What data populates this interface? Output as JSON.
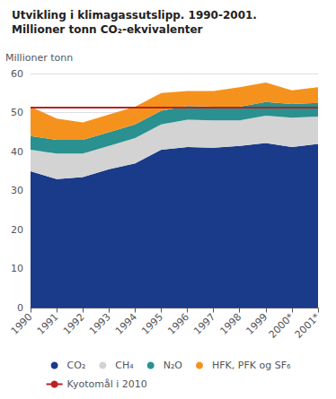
{
  "chart_data": {
    "type": "area",
    "title": "Utvikling i klimagassutslipp. 1990-2001.",
    "subtitle": "Millioner tonn CO₂-ekvivalenter",
    "ylabel": "Millioner tonn",
    "categories": [
      "1990",
      "1991",
      "1992",
      "1993",
      "1994",
      "1995",
      "1996",
      "1997",
      "1998",
      "1999",
      "2000*",
      "2001*"
    ],
    "series": [
      {
        "name": "CO₂",
        "color": "#1a3a8a",
        "values": [
          35.0,
          33.0,
          33.5,
          35.5,
          37.0,
          40.5,
          41.2,
          41.0,
          41.5,
          42.2,
          41.2,
          42.0
        ]
      },
      {
        "name": "CH₄",
        "color": "#d3d3d3",
        "values": [
          5.5,
          6.5,
          6.0,
          6.0,
          6.5,
          6.5,
          7.0,
          7.0,
          6.5,
          7.0,
          7.5,
          7.0
        ]
      },
      {
        "name": "N₂O",
        "color": "#2a9090",
        "values": [
          3.5,
          3.5,
          3.5,
          3.5,
          3.5,
          3.5,
          3.5,
          3.5,
          3.5,
          3.5,
          3.5,
          3.5
        ]
      },
      {
        "name": "HFK, PFK og SF₆",
        "color": "#f5921e",
        "values": [
          7.5,
          5.5,
          4.5,
          4.5,
          4.5,
          4.5,
          3.8,
          4.0,
          5.0,
          5.0,
          3.5,
          4.0
        ]
      }
    ],
    "reference_line": {
      "name": "Kyotomål i 2010",
      "value": 51.4,
      "color": "#bb2222"
    },
    "stacked": true,
    "ylim": [
      0,
      60
    ],
    "yticks": [
      0,
      10,
      20,
      30,
      40,
      50,
      60
    ],
    "grid": true,
    "legend": "bottom"
  }
}
